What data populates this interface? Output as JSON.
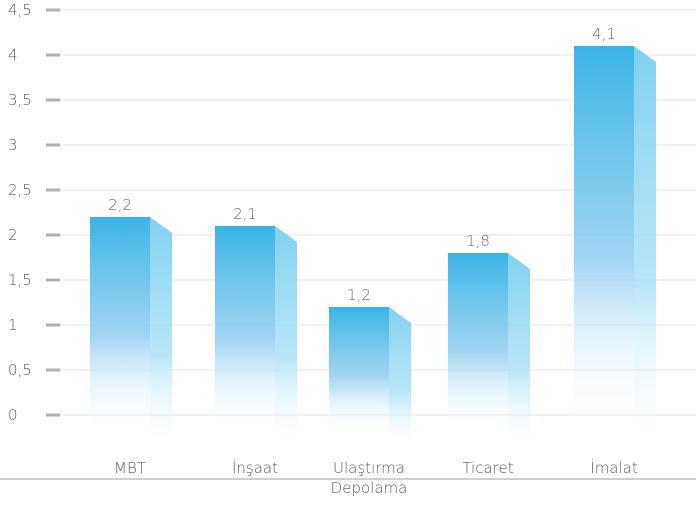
{
  "chart_data": {
    "type": "bar",
    "categories": [
      [
        "MBT"
      ],
      [
        "İnşaat"
      ],
      [
        "Ulaştırma",
        "Depolama"
      ],
      [
        "Ticaret"
      ],
      [
        "İmalat"
      ]
    ],
    "values": [
      2.2,
      2.1,
      1.2,
      1.8,
      4.1
    ],
    "value_labels": [
      "2,2",
      "2,1",
      "1,2",
      "1,8",
      "4,1"
    ],
    "ylim": [
      0,
      4.5
    ],
    "yticks": [
      0,
      0.5,
      1,
      1.5,
      2,
      2.5,
      3,
      3.5,
      4,
      4.5
    ],
    "ytick_labels": [
      "0",
      "0,5",
      "1",
      "1,5",
      "2",
      "2,5",
      "3",
      "3,5",
      "4",
      "4,5"
    ],
    "grid": true,
    "colors": {
      "bar_top": "#3ab4e6",
      "bar_side": "#7fd1f0",
      "gridline": "#e6e6e6",
      "tick_mark": "#b0b0b0",
      "baseline": "#c8c8c8"
    }
  }
}
